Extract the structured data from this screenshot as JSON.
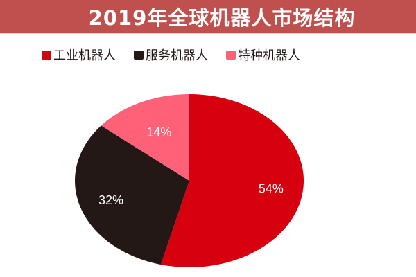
{
  "header": {
    "title": "2019年全球机器人市场结构",
    "background": "#C0504D"
  },
  "legend": {
    "items": [
      {
        "label": "工业机器人",
        "color": "#D7000F"
      },
      {
        "label": "服务机器人",
        "color": "#231815"
      },
      {
        "label": "特种机器人",
        "color": "#FF6178"
      }
    ]
  },
  "chart_data": {
    "type": "pie",
    "title": "2019年全球机器人市场结构",
    "categories": [
      "工业机器人",
      "服务机器人",
      "特种机器人"
    ],
    "values": [
      54,
      32,
      14
    ],
    "labels": [
      "54%",
      "32%",
      "14%"
    ],
    "colors": [
      "#D7000F",
      "#231815",
      "#FF6178"
    ],
    "start_angle": "12 o'clock, clockwise",
    "legend_position": "top",
    "unit": "%"
  }
}
